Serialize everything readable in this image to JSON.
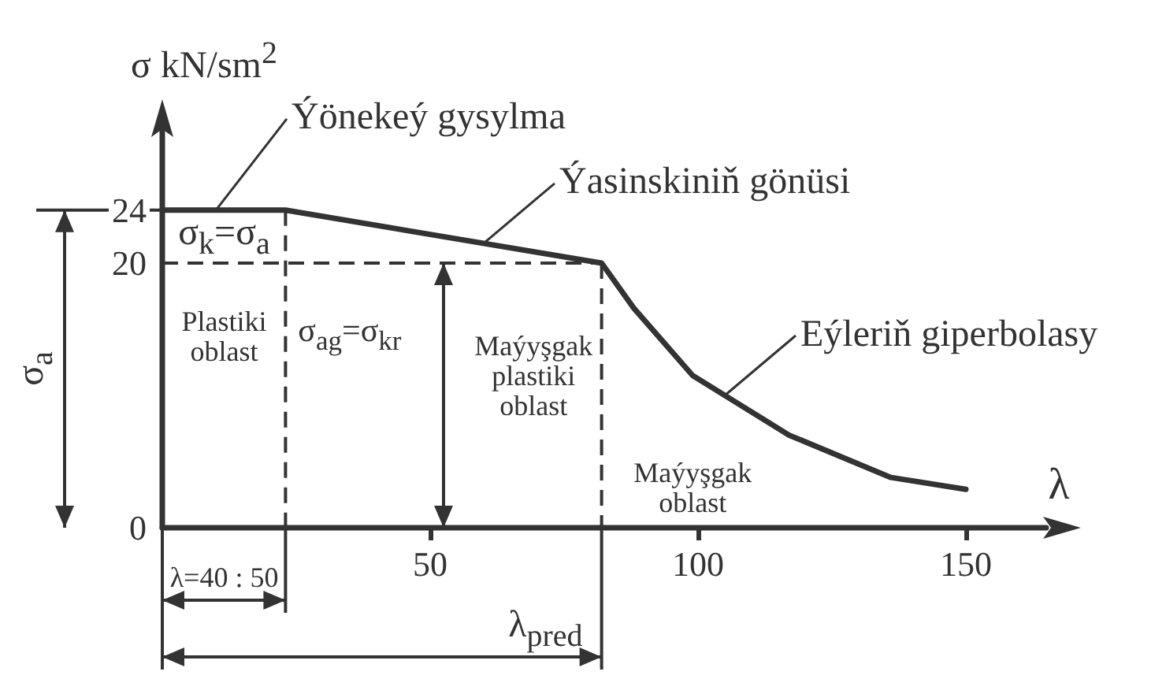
{
  "chart_data": {
    "type": "line",
    "xlabel": "λ",
    "ylabel": "σ  kN/sm$^{2}$",
    "x": [
      0,
      23,
      82,
      88,
      99,
      117,
      136,
      150
    ],
    "series": [
      {
        "color": "#333333",
        "values": [
          24,
          24,
          20,
          16.6,
          11.5,
          7,
          3.8,
          2.9
        ]
      }
    ],
    "xlim": [
      0,
      165
    ],
    "xticks": [
      50,
      100,
      150
    ],
    "ylim": [
      0,
      30
    ],
    "yticks": [
      0,
      20,
      24
    ],
    "marker": "none",
    "line_style": "solid",
    "ref_lines": [
      {
        "axis": "y",
        "value": 24,
        "line_style": "solid"
      },
      {
        "axis": "x",
        "value": 23,
        "line_style": "dashed"
      },
      {
        "axis": "y",
        "value": 20,
        "line_style": "dashed"
      },
      {
        "axis": "x",
        "value": 82,
        "label": "λ$_{pred}$",
        "line_style": "dashed"
      }
    ],
    "annotations": [
      {
        "text": "Ýönekeý gysylma",
        "x": 10,
        "y": 24
      },
      {
        "text": "Ýasinskiniň gönüsi",
        "x": 60,
        "y": 21.5
      },
      {
        "text": "Eýleriň giperbolasy",
        "x": 105,
        "y": 10
      },
      "σ$_{k}$=σ$_{a}$",
      "Plastiki\noblast",
      "Maýyşgak\nplastiki\noblast",
      "Maýyşgak\noblast",
      "λ=40 : 50",
      "σ$_{a}$",
      "σ$_{ag}$=σ$_{kr}$"
    ]
  }
}
